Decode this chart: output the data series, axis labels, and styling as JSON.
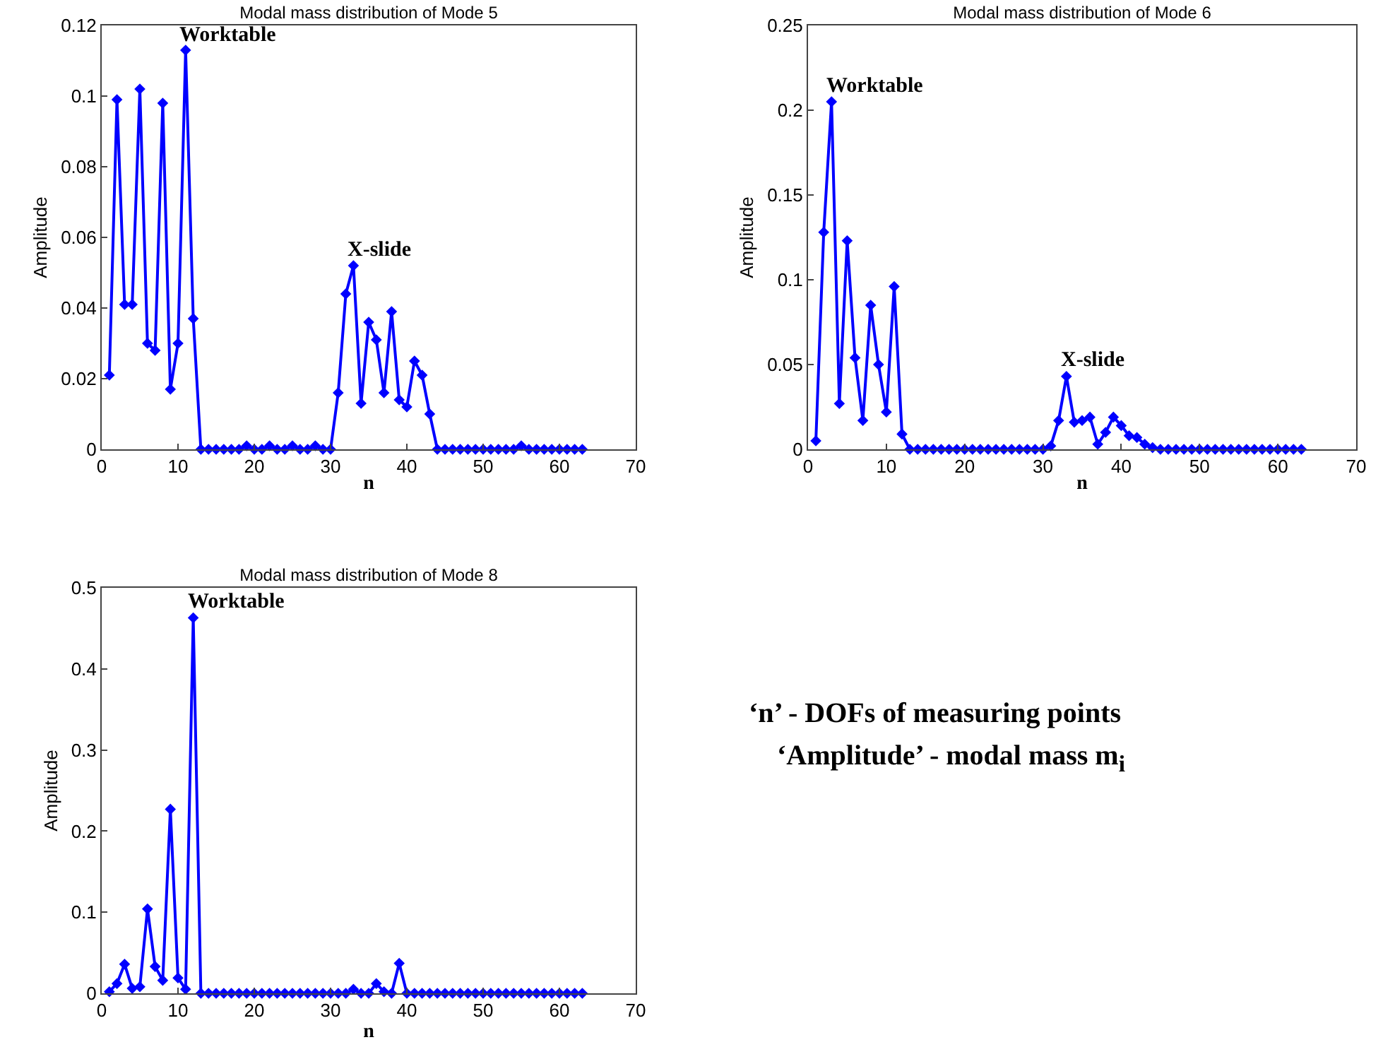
{
  "chart_data": [
    {
      "type": "line",
      "title": "Modal mass distribution of Mode 5",
      "xlabel": "n",
      "ylabel": "Amplitude",
      "marker": "diamond",
      "line_style": "solid",
      "xlim": [
        0,
        70
      ],
      "xticks": [
        0,
        10,
        20,
        30,
        40,
        50,
        60,
        70
      ],
      "ylim": [
        0,
        0.12
      ],
      "yticks": [
        0,
        0.02,
        0.04,
        0.06,
        0.08,
        0.1,
        0.12
      ],
      "x": [
        1,
        2,
        3,
        4,
        5,
        6,
        7,
        8,
        9,
        10,
        11,
        12,
        13,
        14,
        15,
        16,
        17,
        18,
        19,
        20,
        21,
        22,
        23,
        24,
        25,
        26,
        27,
        28,
        29,
        30,
        31,
        32,
        33,
        34,
        35,
        36,
        37,
        38,
        39,
        40,
        41,
        42,
        43,
        44,
        45,
        46,
        47,
        48,
        49,
        50,
        51,
        52,
        53,
        54,
        55,
        56,
        57,
        58,
        59,
        60,
        61,
        62,
        63
      ],
      "series": [
        {
          "color": "#0000ff",
          "values": [
            0.021,
            0.099,
            0.041,
            0.041,
            0.102,
            0.03,
            0.028,
            0.098,
            0.017,
            0.03,
            0.113,
            0.037,
            0,
            0,
            0,
            0,
            0,
            0,
            0.001,
            0,
            0,
            0.001,
            0,
            0,
            0.001,
            0,
            0,
            0.001,
            0,
            0,
            0.016,
            0.044,
            0.052,
            0.013,
            0.036,
            0.031,
            0.016,
            0.039,
            0.014,
            0.012,
            0.025,
            0.021,
            0.01,
            0,
            0,
            0,
            0,
            0,
            0,
            0,
            0,
            0,
            0,
            0,
            0.001,
            0,
            0,
            0,
            0,
            0,
            0,
            0,
            0
          ]
        }
      ],
      "annotations": [
        {
          "text": "Worktable",
          "x": 11,
          "y": 0.113
        },
        {
          "text": "X-slide",
          "x": 33,
          "y": 0.052
        }
      ]
    },
    {
      "type": "line",
      "title": "Modal mass distribution of Mode 6",
      "xlabel": "n",
      "ylabel": "Amplitude",
      "marker": "diamond",
      "line_style": "solid",
      "xlim": [
        0,
        70
      ],
      "xticks": [
        0,
        10,
        20,
        30,
        40,
        50,
        60,
        70
      ],
      "ylim": [
        0,
        0.25
      ],
      "yticks": [
        0,
        0.05,
        0.1,
        0.15,
        0.2,
        0.25
      ],
      "x": [
        1,
        2,
        3,
        4,
        5,
        6,
        7,
        8,
        9,
        10,
        11,
        12,
        13,
        14,
        15,
        16,
        17,
        18,
        19,
        20,
        21,
        22,
        23,
        24,
        25,
        26,
        27,
        28,
        29,
        30,
        31,
        32,
        33,
        34,
        35,
        36,
        37,
        38,
        39,
        40,
        41,
        42,
        43,
        44,
        45,
        46,
        47,
        48,
        49,
        50,
        51,
        52,
        53,
        54,
        55,
        56,
        57,
        58,
        59,
        60,
        61,
        62,
        63
      ],
      "series": [
        {
          "color": "#0000ff",
          "values": [
            0.005,
            0.128,
            0.205,
            0.027,
            0.123,
            0.054,
            0.017,
            0.085,
            0.05,
            0.022,
            0.096,
            0.009,
            0,
            0,
            0,
            0,
            0,
            0,
            0,
            0,
            0,
            0,
            0,
            0,
            0,
            0,
            0,
            0,
            0,
            0,
            0.002,
            0.017,
            0.043,
            0.016,
            0.017,
            0.019,
            0.003,
            0.01,
            0.019,
            0.014,
            0.008,
            0.007,
            0.003,
            0.001,
            0,
            0,
            0,
            0,
            0,
            0,
            0,
            0,
            0,
            0,
            0,
            0,
            0,
            0,
            0,
            0,
            0,
            0,
            0
          ]
        }
      ],
      "annotations": [
        {
          "text": "Worktable",
          "x": 3,
          "y": 0.205
        },
        {
          "text": "X-slide",
          "x": 33,
          "y": 0.043
        }
      ]
    },
    {
      "type": "line",
      "title": "Modal mass distribution of Mode 8",
      "xlabel": "n",
      "ylabel": "Amplitude",
      "marker": "diamond",
      "line_style": "solid",
      "xlim": [
        0,
        70
      ],
      "xticks": [
        0,
        10,
        20,
        30,
        40,
        50,
        60,
        70
      ],
      "ylim": [
        0,
        0.5
      ],
      "yticks": [
        0,
        0.1,
        0.2,
        0.3,
        0.4,
        0.5
      ],
      "x": [
        1,
        2,
        3,
        4,
        5,
        6,
        7,
        8,
        9,
        10,
        11,
        12,
        13,
        14,
        15,
        16,
        17,
        18,
        19,
        20,
        21,
        22,
        23,
        24,
        25,
        26,
        27,
        28,
        29,
        30,
        31,
        32,
        33,
        34,
        35,
        36,
        37,
        38,
        39,
        40,
        41,
        42,
        43,
        44,
        45,
        46,
        47,
        48,
        49,
        50,
        51,
        52,
        53,
        54,
        55,
        56,
        57,
        58,
        59,
        60,
        61,
        62,
        63
      ],
      "series": [
        {
          "color": "#0000ff",
          "values": [
            0.002,
            0.012,
            0.036,
            0.006,
            0.008,
            0.104,
            0.033,
            0.016,
            0.227,
            0.019,
            0.005,
            0.463,
            0,
            0,
            0,
            0,
            0,
            0,
            0,
            0,
            0,
            0,
            0,
            0,
            0,
            0,
            0,
            0,
            0,
            0,
            0,
            0,
            0.005,
            0,
            0,
            0.012,
            0.002,
            0,
            0.037,
            0,
            0,
            0,
            0,
            0,
            0,
            0,
            0,
            0,
            0,
            0,
            0,
            0,
            0,
            0,
            0,
            0,
            0,
            0,
            0,
            0,
            0,
            0,
            0
          ]
        }
      ],
      "annotations": [
        {
          "text": "Worktable",
          "x": 12,
          "y": 0.463
        }
      ]
    },
    {
      "type": "other",
      "annotations": [
        "‘n’ - DOFs of measuring points",
        "‘Amplitude’ - modal mass m$_{i}$"
      ]
    }
  ]
}
